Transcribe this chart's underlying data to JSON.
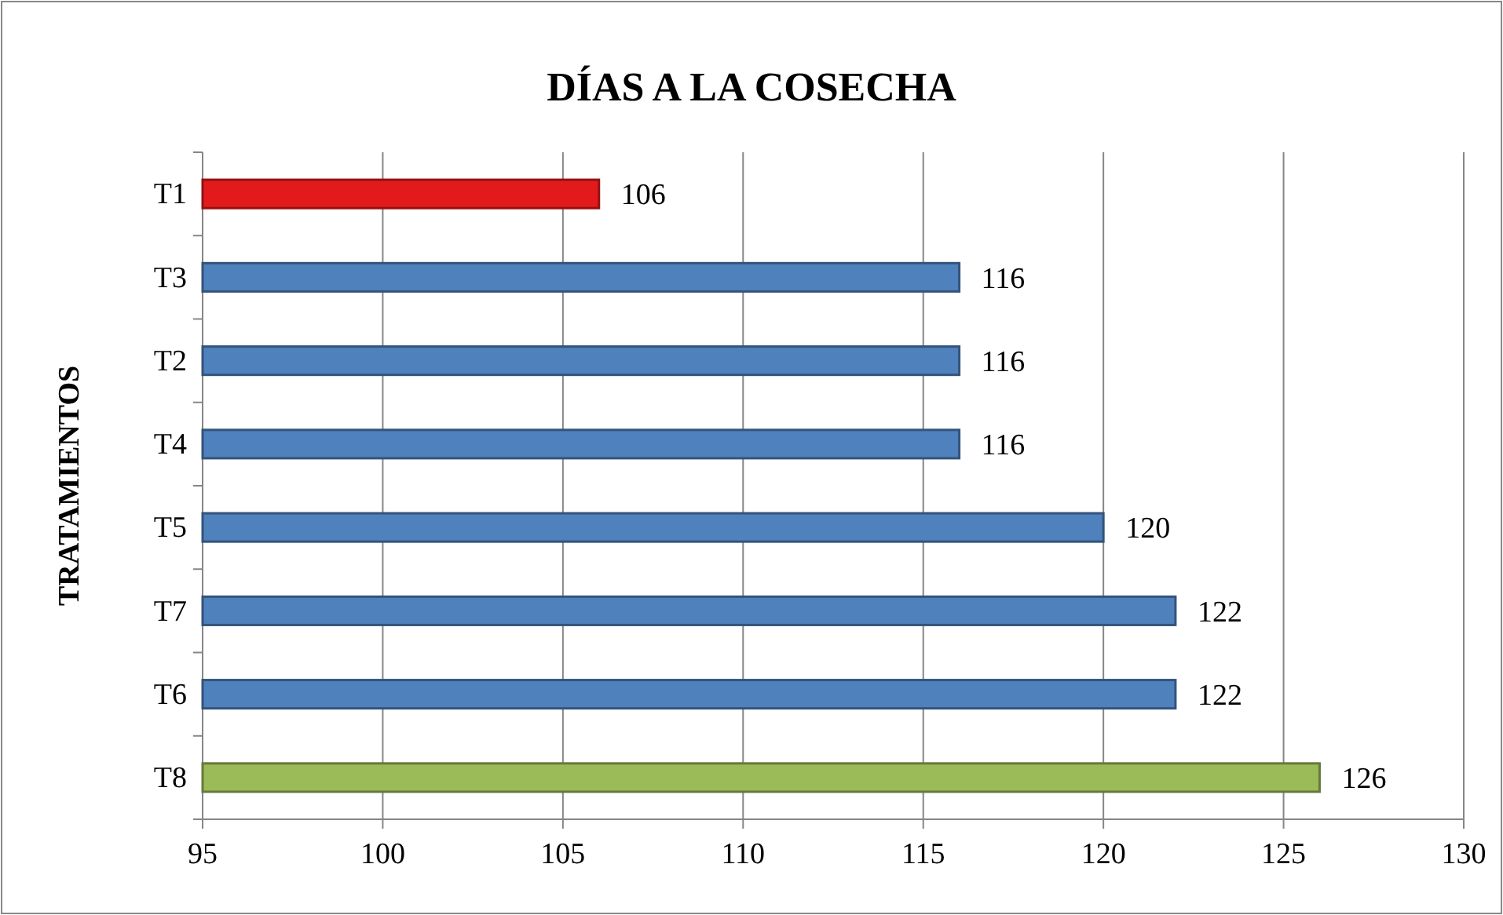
{
  "chart_data": {
    "type": "bar",
    "orientation": "horizontal",
    "title": "DÍAS A LA COSECHA",
    "ylabel": "TRATAMIENTOS",
    "categories": [
      "T1",
      "T3",
      "T2",
      "T4",
      "T5",
      "T7",
      "T6",
      "T8"
    ],
    "values": [
      106,
      116,
      116,
      116,
      120,
      122,
      122,
      126
    ],
    "colors": [
      "#e31a1c",
      "#4f81bd",
      "#4f81bd",
      "#4f81bd",
      "#4f81bd",
      "#4f81bd",
      "#4f81bd",
      "#9bbb59"
    ],
    "xlim": [
      95,
      130
    ],
    "xticks": [
      95,
      100,
      105,
      110,
      115,
      120,
      125,
      130
    ],
    "grid": "x",
    "data_labels": true
  }
}
